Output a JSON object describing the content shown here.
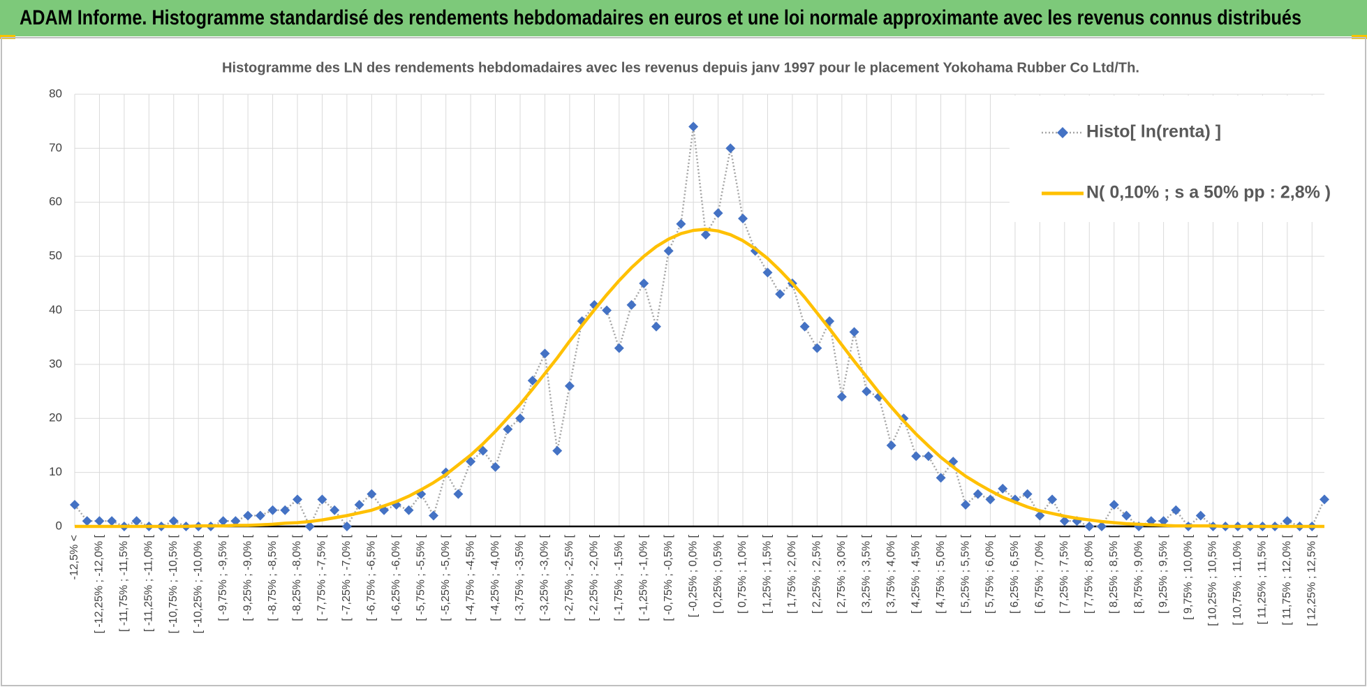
{
  "header": {
    "title": "ADAM Informe. Histogramme standardisé des rendements hebdomadaires en euros et une loi normale approximante avec les revenus connus distribués"
  },
  "chart_data": {
    "type": "line",
    "title": "Histogramme  des LN des rendements hebdomadaires avec les revenus depuis janv 1997 pour le placement Yokohama Rubber Co Ltd/Th.",
    "categories": [
      "-12,5% <",
      null,
      "[ -12,25% ; -12,0% [",
      null,
      "[ -11,75% ; -11,5% [",
      null,
      "[ -11,25% ; -11,0% [",
      null,
      "[ -10,75% ; -10,5% [",
      null,
      "[ -10,25% ; -10,0% [",
      null,
      "[ -9,75% ; -9,5% [",
      null,
      "[ -9,25% ; -9,0% [",
      null,
      "[ -8,75% ; -8,5% [",
      null,
      "[ -8,25% ; -8,0% [",
      null,
      "[ -7,75% ; -7,5% [",
      null,
      "[ -7,25% ; -7,0% [",
      null,
      "[ -6,75% ; -6,5% [",
      null,
      "[ -6,25% ; -6,0% [",
      null,
      "[ -5,75% ; -5,5% [",
      null,
      "[ -5,25% ; -5,0% [",
      null,
      "[ -4,75% ; -4,5% [",
      null,
      "[ -4,25% ; -4,0% [",
      null,
      "[ -3,75% ; -3,5% [",
      null,
      "[ -3,25% ; -3,0% [",
      null,
      "[ -2,75% ; -2,5% [",
      null,
      "[ -2,25% ; -2,0% [",
      null,
      "[ -1,75% ; -1,5% [",
      null,
      "[ -1,25% ; -1,0% [",
      null,
      "[ -0,75% ; -0,5% [",
      null,
      "[ -0,25% ; 0,0% [",
      null,
      "[ 0,25% ; 0,5% [",
      null,
      "[ 0,75% ; 1,0% [",
      null,
      "[ 1,25% ; 1,5% [",
      null,
      "[ 1,75% ; 2,0% [",
      null,
      "[ 2,25% ; 2,5% [",
      null,
      "[ 2,75% ; 3,0% [",
      null,
      "[ 3,25% ; 3,5% [",
      null,
      "[ 3,75% ; 4,0% [",
      null,
      "[ 4,25% ; 4,5% [",
      null,
      "[ 4,75% ; 5,0% [",
      null,
      "[ 5,25% ; 5,5% [",
      null,
      "[ 5,75% ; 6,0% [",
      null,
      "[ 6,25% ; 6,5% [",
      null,
      "[ 6,75% ; 7,0% [",
      null,
      "[ 7,25% ; 7,5% [",
      null,
      "[ 7,75% ; 8,0% [",
      null,
      "[ 8,25% ; 8,5% [",
      null,
      "[ 8,75% ; 9,0% [",
      null,
      "[ 9,25% ; 9,5% [",
      null,
      "[ 9,75% ; 10,0% [",
      null,
      "[ 10,25% ; 10,5% [",
      null,
      "[ 10,75% ; 11,0% [",
      null,
      "[ 11,25% ; 11,5% [",
      null,
      "[ 11,75% ; 12,0% [",
      null,
      "[ 12,25% ; 12,5% [",
      null
    ],
    "series": [
      {
        "name": "Histo[ ln(renta) ]",
        "color": "#4472c4",
        "line_color": "#a5a5a5",
        "marker": "diamond",
        "values": [
          4,
          1,
          1,
          1,
          0,
          1,
          0,
          0,
          1,
          0,
          0,
          0,
          1,
          1,
          2,
          2,
          3,
          3,
          5,
          0,
          5,
          3,
          0,
          4,
          6,
          3,
          4,
          3,
          6,
          2,
          10,
          6,
          12,
          14,
          11,
          18,
          20,
          27,
          32,
          14,
          26,
          38,
          41,
          40,
          33,
          41,
          45,
          37,
          51,
          56,
          74,
          54,
          58,
          70,
          57,
          51,
          47,
          43,
          45,
          37,
          33,
          38,
          24,
          36,
          25,
          24,
          15,
          20,
          13,
          13,
          9,
          12,
          4,
          6,
          5,
          7,
          5,
          6,
          2,
          5,
          1,
          1,
          0,
          0,
          4,
          2,
          0,
          1,
          1,
          3,
          0,
          2,
          0,
          0,
          0,
          0,
          0,
          0,
          1,
          0,
          0,
          5
        ]
      },
      {
        "name": "N( 0,10% ; s a 50% pp : 2,8% )",
        "color": "#ffc000",
        "marker": "none",
        "values": [
          0,
          0,
          0,
          0,
          0,
          0,
          0,
          0,
          0,
          0,
          0.1,
          0.1,
          0.1,
          0.2,
          0.2,
          0.3,
          0.4,
          0.6,
          0.7,
          0.9,
          1.2,
          1.6,
          2.0,
          2.5,
          3.0,
          3.8,
          4.6,
          5.6,
          6.8,
          8.1,
          9.6,
          11.4,
          13.2,
          15.3,
          17.6,
          20.1,
          22.6,
          25.4,
          28.3,
          31.2,
          34.3,
          37.2,
          40.1,
          42.9,
          45.5,
          47.9,
          50.0,
          51.8,
          53.2,
          54.2,
          54.8,
          55.0,
          54.7,
          54.0,
          52.9,
          51.4,
          49.6,
          47.4,
          45.0,
          42.4,
          39.5,
          36.6,
          33.6,
          30.6,
          27.7,
          24.8,
          22.1,
          19.5,
          17.1,
          14.9,
          12.8,
          11.0,
          9.3,
          7.9,
          6.6,
          5.4,
          4.5,
          3.6,
          2.9,
          2.4,
          1.9,
          1.5,
          1.2,
          0.9,
          0.7,
          0.5,
          0.4,
          0.3,
          0.2,
          0.1,
          0.1,
          0.1,
          0.1,
          0,
          0,
          0,
          0,
          0,
          0,
          0,
          0,
          0
        ]
      }
    ],
    "ylim": [
      0,
      80
    ],
    "yticks": [
      0,
      10,
      20,
      30,
      40,
      50,
      60,
      70,
      80
    ],
    "grid": true,
    "legend": "upper right"
  }
}
